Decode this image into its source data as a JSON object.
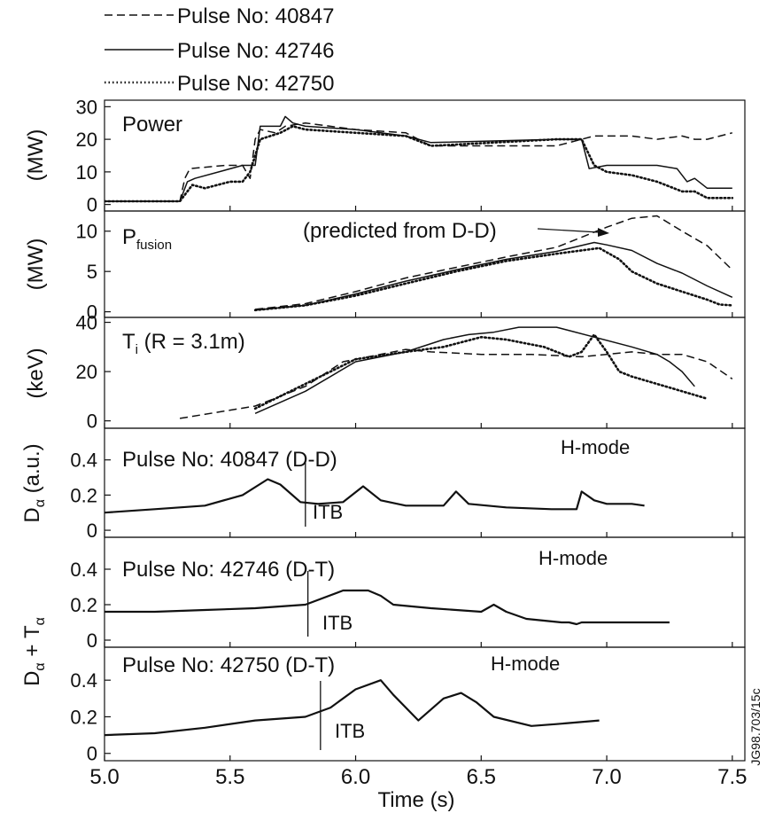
{
  "chart_data": {
    "type": "line",
    "xlabel": "Time (s)",
    "xlim": [
      5.0,
      7.55
    ],
    "x_ticks": [
      "5.0",
      "5.5",
      "6.0",
      "6.5",
      "7.0",
      "7.5"
    ],
    "legend": {
      "placement": "top-left",
      "entries": [
        {
          "label": "Pulse No: 40847",
          "style": "dashed"
        },
        {
          "label": "Pulse No: 42746",
          "style": "solid"
        },
        {
          "label": "Pulse No: 42750",
          "style": "dotted"
        }
      ]
    },
    "side_label": "JG98.703/15c",
    "panels": [
      {
        "id": "power",
        "ylabel": "(MW)",
        "ylim": [
          -2,
          32
        ],
        "y_ticks": [
          "0",
          "10",
          "20",
          "30"
        ],
        "label": "Power",
        "series": [
          {
            "name": "Pulse No: 40847",
            "style": "dashed",
            "x": [
              5.0,
              5.3,
              5.32,
              5.34,
              5.48,
              5.55,
              5.58,
              5.6,
              5.62,
              5.68,
              5.72,
              5.8,
              6.0,
              6.2,
              6.3,
              6.8,
              6.95,
              7.1,
              7.2,
              7.3,
              7.35,
              7.4,
              7.5
            ],
            "y": [
              1,
              1,
              8,
              11,
              12,
              12,
              8,
              20,
              23,
              22,
              24,
              25,
              23,
              22,
              18,
              18,
              21,
              21,
              20,
              21,
              20,
              20,
              22
            ]
          },
          {
            "name": "Pulse No: 42746",
            "style": "solid",
            "x": [
              5.0,
              5.3,
              5.33,
              5.36,
              5.55,
              5.6,
              5.62,
              5.7,
              5.72,
              5.75,
              5.8,
              6.0,
              6.2,
              6.3,
              6.8,
              6.9,
              6.93,
              7.0,
              7.1,
              7.2,
              7.28,
              7.32,
              7.35,
              7.4,
              7.45,
              7.5
            ],
            "y": [
              1,
              1,
              7,
              8,
              12,
              12,
              24,
              24,
              27,
              25,
              24,
              23,
              21,
              19,
              20,
              20,
              11,
              12,
              12,
              12,
              11,
              7,
              8,
              5,
              5,
              5
            ]
          },
          {
            "name": "Pulse No: 42750",
            "style": "dotted",
            "x": [
              5.0,
              5.3,
              5.35,
              5.4,
              5.5,
              5.55,
              5.58,
              5.62,
              5.7,
              5.75,
              5.8,
              6.0,
              6.2,
              6.3,
              6.8,
              6.9,
              6.95,
              7.0,
              7.1,
              7.2,
              7.3,
              7.35,
              7.4,
              7.5
            ],
            "y": [
              1,
              1,
              6,
              5,
              7,
              7,
              10,
              20,
              22,
              24,
              23,
              22,
              21,
              18,
              20,
              20,
              12,
              10,
              9,
              7,
              4,
              4,
              2,
              2
            ]
          }
        ]
      },
      {
        "id": "pfusion",
        "ylabel": "(MW)",
        "ylim": [
          -0.7,
          12.5
        ],
        "y_ticks": [
          "0",
          "5",
          "10"
        ],
        "label_main": "P",
        "label_sub": "fusion",
        "annotation": "(predicted from D-D)",
        "series": [
          {
            "name": "Pulse No: 40847",
            "style": "dashed",
            "x": [
              5.6,
              5.8,
              6.0,
              6.2,
              6.4,
              6.6,
              6.8,
              7.0,
              7.1,
              7.2,
              7.3,
              7.4,
              7.5
            ],
            "y": [
              0.3,
              1.0,
              2.5,
              4.2,
              5.5,
              6.8,
              8.0,
              10.5,
              11.6,
              11.9,
              10.0,
              8.2,
              5.2
            ]
          },
          {
            "name": "Pulse No: 42746",
            "style": "solid",
            "x": [
              5.6,
              5.8,
              6.0,
              6.2,
              6.4,
              6.6,
              6.8,
              6.95,
              7.0,
              7.1,
              7.2,
              7.3,
              7.4,
              7.5
            ],
            "y": [
              0.2,
              0.8,
              2.2,
              3.8,
              5.2,
              6.5,
              7.5,
              8.6,
              8.3,
              7.6,
              6.0,
              4.8,
              3.2,
              1.8
            ]
          },
          {
            "name": "Pulse No: 42750",
            "style": "dotted",
            "x": [
              5.6,
              5.8,
              6.0,
              6.2,
              6.4,
              6.6,
              6.8,
              6.97,
              7.05,
              7.1,
              7.2,
              7.3,
              7.4,
              7.45,
              7.5
            ],
            "y": [
              0.2,
              0.8,
              2.0,
              3.5,
              5.0,
              6.3,
              7.2,
              7.9,
              6.5,
              5.0,
              3.5,
              2.5,
              1.5,
              0.9,
              0.8
            ]
          }
        ]
      },
      {
        "id": "ti",
        "ylabel": "(keV)",
        "ylim": [
          -3,
          42
        ],
        "y_ticks": [
          "0",
          "20",
          "40"
        ],
        "label_main": "T",
        "label_sub": "i",
        "label_tail": " (R = 3.1m)",
        "series": [
          {
            "name": "Pulse No: 40847",
            "style": "dashed",
            "x": [
              5.3,
              5.6,
              5.8,
              5.95,
              6.2,
              6.3,
              6.5,
              6.7,
              6.9,
              7.0,
              7.1,
              7.2,
              7.3,
              7.4,
              7.5
            ],
            "y": [
              1,
              6,
              14,
              24,
              29,
              28,
              27,
              27,
              26,
              27,
              28,
              27,
              27,
              24,
              17
            ]
          },
          {
            "name": "Pulse No: 42746",
            "style": "solid",
            "x": [
              5.6,
              5.8,
              6.0,
              6.2,
              6.35,
              6.45,
              6.55,
              6.65,
              6.8,
              6.95,
              7.1,
              7.2,
              7.25,
              7.3,
              7.35
            ],
            "y": [
              3,
              12,
              24,
              28,
              33,
              35,
              36,
              38,
              38,
              34,
              30,
              27,
              24,
              20,
              14
            ]
          },
          {
            "name": "Pulse No: 42750",
            "style": "dotted",
            "x": [
              5.6,
              5.8,
              6.0,
              6.2,
              6.35,
              6.5,
              6.6,
              6.75,
              6.85,
              6.9,
              6.95,
              7.0,
              7.05,
              7.1,
              7.2,
              7.3,
              7.4
            ],
            "y": [
              5,
              15,
              25,
              28,
              30,
              34,
              33,
              30,
              26,
              28,
              35,
              28,
              20,
              18,
              15,
              12,
              9
            ]
          }
        ]
      },
      {
        "id": "dalpha-40847",
        "ylabel_main": "D",
        "ylabel_sub": "α",
        "ylabel_tail": " (a.u.)",
        "ylim": [
          -0.04,
          0.58
        ],
        "y_ticks": [
          "0",
          "0.2",
          "0.4"
        ],
        "label": "Pulse No: 40847 (D-D)",
        "itb_label": "ITB",
        "itb_x": 5.8,
        "hmode_label": "H-mode",
        "series": [
          {
            "name": "Pulse No: 40847",
            "style": "solid",
            "x": [
              5.0,
              5.2,
              5.4,
              5.55,
              5.65,
              5.7,
              5.78,
              5.85,
              5.95,
              6.03,
              6.1,
              6.2,
              6.35,
              6.4,
              6.45,
              6.6,
              6.78,
              6.88,
              6.9,
              6.95,
              7.0,
              7.1,
              7.15
            ],
            "y": [
              0.1,
              0.12,
              0.14,
              0.2,
              0.29,
              0.26,
              0.16,
              0.15,
              0.16,
              0.25,
              0.17,
              0.14,
              0.14,
              0.22,
              0.15,
              0.13,
              0.12,
              0.12,
              0.22,
              0.17,
              0.15,
              0.15,
              0.14
            ]
          }
        ]
      },
      {
        "id": "dalpha-42746",
        "ylim": [
          -0.04,
          0.58
        ],
        "y_ticks": [
          "0",
          "0.2",
          "0.4"
        ],
        "label": "Pulse No: 42746 (D-T)",
        "itb_label": "ITB",
        "itb_x": 5.81,
        "hmode_label": "H-mode",
        "series": [
          {
            "name": "Pulse No: 42746",
            "style": "solid",
            "x": [
              5.0,
              5.2,
              5.4,
              5.6,
              5.8,
              5.95,
              6.05,
              6.1,
              6.15,
              6.3,
              6.5,
              6.55,
              6.6,
              6.68,
              6.75,
              6.82,
              6.85,
              6.88,
              6.9,
              6.93,
              7.0,
              7.1,
              7.2,
              7.25
            ],
            "y": [
              0.16,
              0.16,
              0.17,
              0.18,
              0.2,
              0.28,
              0.28,
              0.25,
              0.2,
              0.18,
              0.16,
              0.2,
              0.16,
              0.12,
              0.11,
              0.1,
              0.1,
              0.09,
              0.1,
              0.1,
              0.1,
              0.1,
              0.1,
              0.1
            ]
          }
        ]
      },
      {
        "id": "dalpha-42750",
        "ylim": [
          -0.04,
          0.58
        ],
        "y_ticks": [
          "0",
          "0.2",
          "0.4"
        ],
        "label": "Pulse No: 42750 (D-T)",
        "itb_label": "ITB",
        "itb_x": 5.86,
        "hmode_label": "H-mode",
        "series": [
          {
            "name": "Pulse No: 42750",
            "style": "solid",
            "x": [
              5.0,
              5.2,
              5.4,
              5.6,
              5.8,
              5.9,
              6.0,
              6.1,
              6.15,
              6.25,
              6.35,
              6.42,
              6.48,
              6.55,
              6.7,
              6.8,
              6.97
            ],
            "y": [
              0.1,
              0.11,
              0.14,
              0.18,
              0.2,
              0.25,
              0.35,
              0.4,
              0.32,
              0.18,
              0.3,
              0.33,
              0.28,
              0.2,
              0.15,
              0.16,
              0.18
            ]
          }
        ]
      }
    ],
    "shared_ylabel_main": "D",
    "shared_ylabel_sub": "α",
    "shared_ylabel_mid": " + T",
    "shared_ylabel_sub2": "α"
  }
}
